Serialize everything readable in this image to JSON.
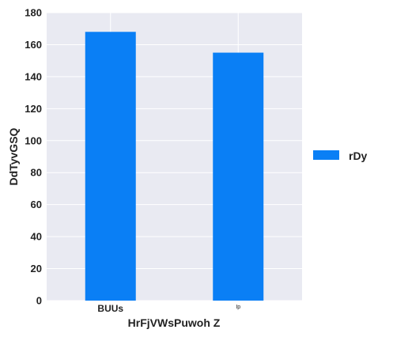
{
  "chart_data": {
    "type": "bar",
    "categories": [
      "BUUs",
      "Ip"
    ],
    "series": [
      {
        "name": "rDy",
        "values": [
          168,
          155
        ]
      }
    ],
    "xlabel": "HrFjVWsPuwoh Z",
    "ylabel": "DdTyvGSQ",
    "ylim": [
      0,
      180
    ],
    "yticks": [
      0,
      20,
      40,
      60,
      80,
      100,
      120,
      140,
      160,
      180
    ],
    "grid": true,
    "legend": "right",
    "colors": {
      "bar": "#0a7ff5",
      "plot_bg": "#e9eaf2",
      "grid": "#ffffff"
    }
  }
}
